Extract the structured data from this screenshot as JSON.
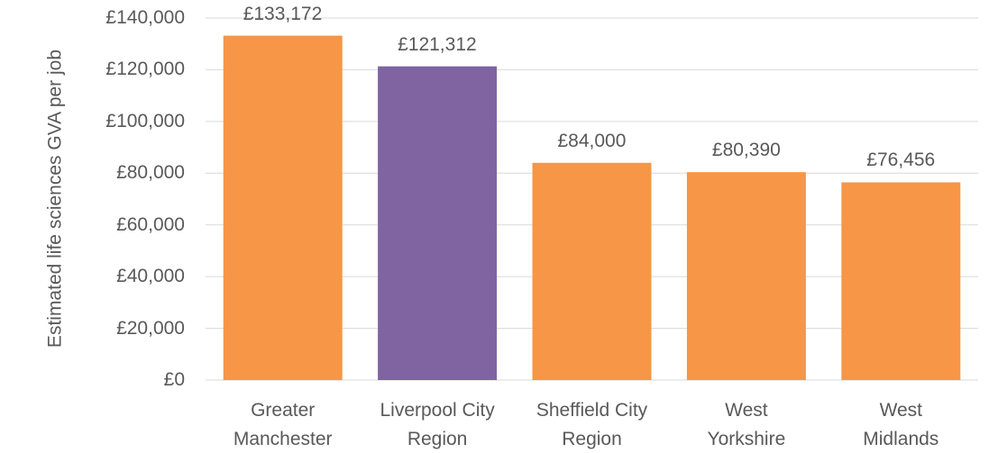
{
  "chart_data": {
    "type": "bar",
    "ylabel": "Estimated life sciences GVA per job",
    "categories": [
      "Greater Manchester",
      "Liverpool City Region",
      "Sheffield City Region",
      "West Yorkshire",
      "West Midlands"
    ],
    "values": [
      133172,
      121312,
      84000,
      80390,
      76456
    ],
    "value_labels": [
      "£133,172",
      "£121,312",
      "£84,000",
      "£80,390",
      "£76,456"
    ],
    "colors": [
      "#f79646",
      "#8064a2",
      "#f79646",
      "#f79646",
      "#f79646"
    ],
    "ylim": [
      0,
      140000
    ],
    "yticks": [
      {
        "value": 0,
        "label": "£0"
      },
      {
        "value": 20000,
        "label": "£20,000"
      },
      {
        "value": 40000,
        "label": "£40,000"
      },
      {
        "value": 60000,
        "label": "£60,000"
      },
      {
        "value": 80000,
        "label": "£80,000"
      },
      {
        "value": 100000,
        "label": "£100,000"
      },
      {
        "value": 120000,
        "label": "£120,000"
      },
      {
        "value": 140000,
        "label": "£140,000"
      }
    ],
    "grid": true
  }
}
